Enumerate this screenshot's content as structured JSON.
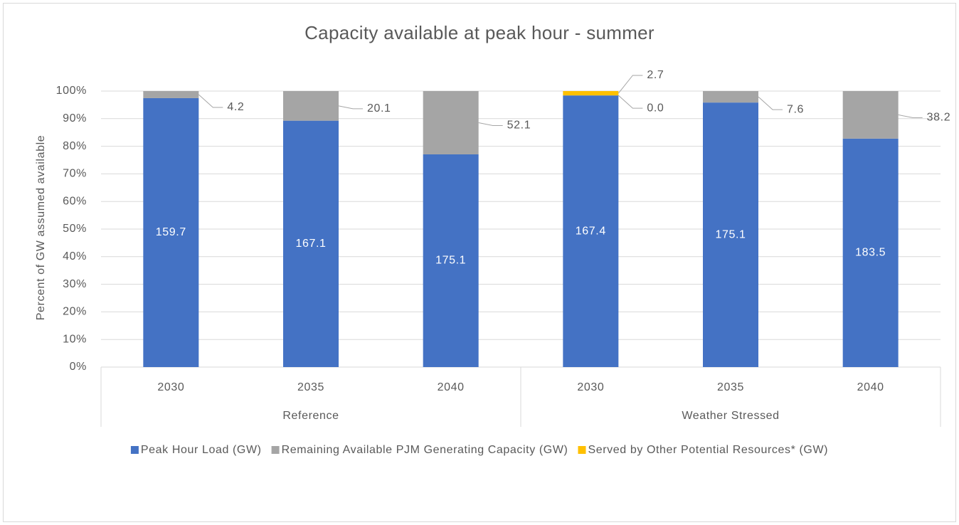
{
  "chart_data": {
    "type": "bar",
    "stacking": "percent",
    "title": "Capacity available at peak hour - summer",
    "y_label": "Percent of GW assumed available",
    "groups": [
      {
        "label": "Reference",
        "categories": [
          "2030",
          "2035",
          "2040"
        ]
      },
      {
        "label": "Weather Stressed",
        "categories": [
          "2030",
          "2035",
          "2040"
        ]
      }
    ],
    "series": [
      {
        "name": "Peak Hour Load (GW)",
        "color": "#4472c4",
        "values": [
          159.7,
          167.1,
          175.1,
          167.4,
          175.1,
          183.5
        ]
      },
      {
        "name": "Remaining Available PJM Generating Capacity (GW)",
        "color": "#a5a5a5",
        "values": [
          4.2,
          20.1,
          52.1,
          0,
          7.6,
          38.2
        ],
        "value_labels": [
          "4.2",
          "20.1",
          "52.1",
          "0.0",
          "7.6",
          "38.2"
        ]
      },
      {
        "name": "Served by Other Potential Resources* (GW)",
        "color": "#ffc000",
        "values": [
          null,
          null,
          null,
          2.7,
          null,
          null
        ]
      }
    ],
    "ylim": [
      0,
      100
    ],
    "yticks": [
      {
        "value": 0,
        "label": "0%"
      },
      {
        "value": 10,
        "label": "10%"
      },
      {
        "value": 20,
        "label": "20%"
      },
      {
        "value": 30,
        "label": "30%"
      },
      {
        "value": 40,
        "label": "40%"
      },
      {
        "value": 50,
        "label": "50%"
      },
      {
        "value": 60,
        "label": "60%"
      },
      {
        "value": 70,
        "label": "70%"
      },
      {
        "value": 80,
        "label": "80%"
      },
      {
        "value": 90,
        "label": "90%"
      },
      {
        "value": 100,
        "label": "100%"
      }
    ],
    "grid": true,
    "legend": "bottom"
  }
}
